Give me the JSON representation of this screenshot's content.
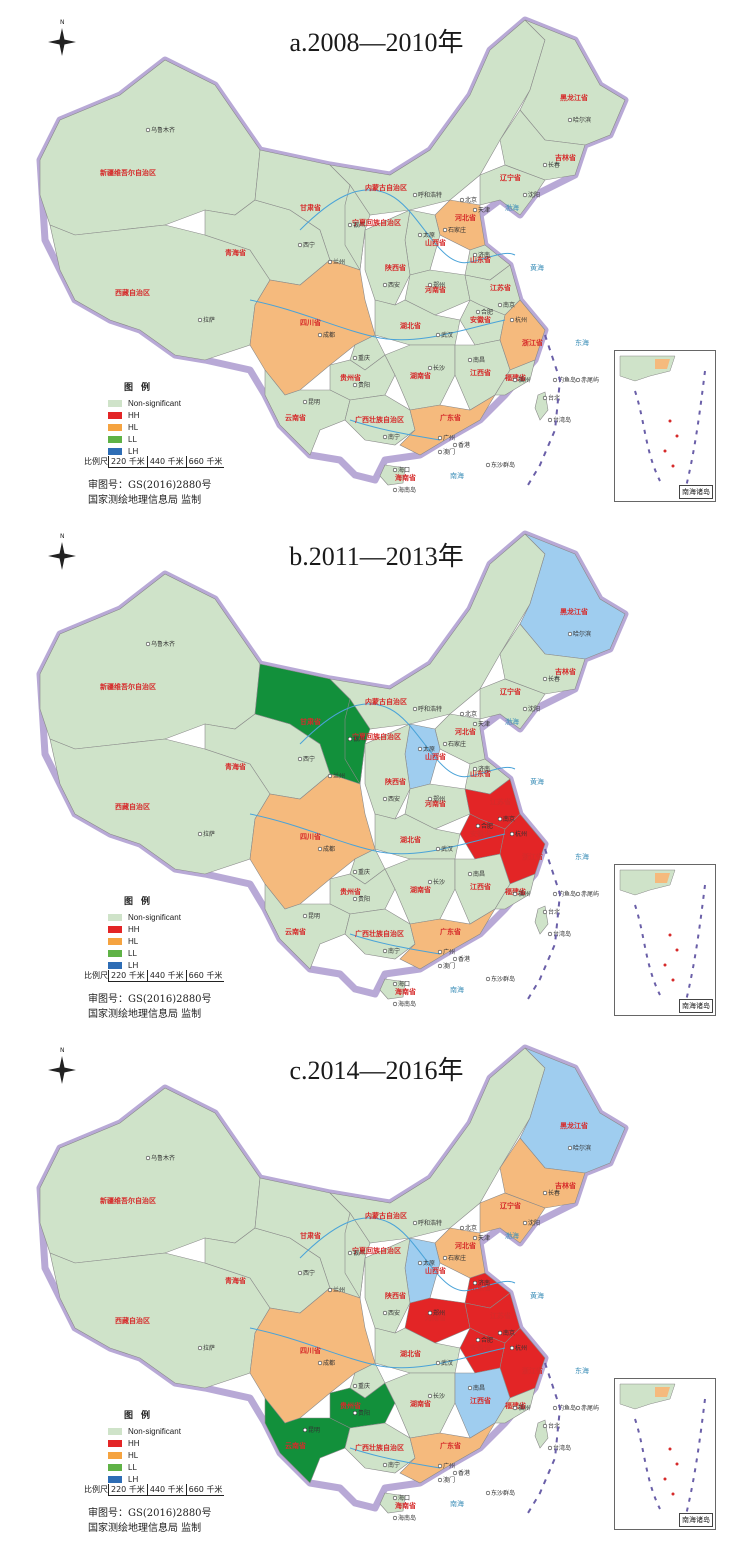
{
  "colors": {
    "non_significant": "#cfe3c9",
    "hh": "#e32526",
    "hl": "#f5ba7d",
    "ll": "#12903b",
    "lh": "#9fcdef",
    "border_glow": "#b8a9d6",
    "river": "#4aa3d8",
    "sea": "#ffffff"
  },
  "panels": [
    {
      "title": "a.2008—2010年",
      "legend": {
        "title": "图例",
        "items": [
          {
            "label": "Non-significant",
            "color": "#cfe3c9"
          },
          {
            "label": "HH",
            "color": "#e32526"
          },
          {
            "label": "HL",
            "color": "#f5a340"
          },
          {
            "label": "LL",
            "color": "#5fb246"
          },
          {
            "label": "LH",
            "color": "#2e6db5"
          }
        ]
      },
      "scale": {
        "label": "比例尺",
        "ticks": [
          "220 千米",
          "440 千米",
          "660 千米"
        ]
      },
      "approval": [
        "审图号：GS(2016)2880号",
        "国家测绘地理信息局 监制"
      ],
      "inset_label": "南海诸岛"
    },
    {
      "title": "b.2011—2013年",
      "legend": {
        "title": "图例",
        "items": [
          {
            "label": "Non-significant",
            "color": "#cfe3c9"
          },
          {
            "label": "HH",
            "color": "#e32526"
          },
          {
            "label": "HL",
            "color": "#f5a340"
          },
          {
            "label": "LL",
            "color": "#5fb246"
          },
          {
            "label": "LH",
            "color": "#2e6db5"
          }
        ]
      },
      "scale": {
        "label": "比例尺",
        "ticks": [
          "220 千米",
          "440 千米",
          "660 千米"
        ]
      },
      "approval": [
        "审图号：GS(2016)2880号",
        "国家测绘地理信息局 监制"
      ],
      "inset_label": "南海诸岛"
    },
    {
      "title": "c.2014—2016年",
      "legend": {
        "title": "图例",
        "items": [
          {
            "label": "Non-significant",
            "color": "#cfe3c9"
          },
          {
            "label": "HH",
            "color": "#e32526"
          },
          {
            "label": "HL",
            "color": "#f5a340"
          },
          {
            "label": "LL",
            "color": "#5fb246"
          },
          {
            "label": "LH",
            "color": "#2e6db5"
          }
        ]
      },
      "scale": {
        "label": "比例尺",
        "ticks": [
          "220 千米",
          "440 千米",
          "660 千米"
        ]
      },
      "approval": [
        "审图号：GS(2016)2880号",
        "国家测绘地理信息局 监制"
      ],
      "inset_label": "南海诸岛"
    }
  ],
  "map_labels": {
    "xinjiang": "新疆维吾尔自治区",
    "tibet": "西藏自治区",
    "qinghai": "青海省",
    "gansu": "甘肃省",
    "neimenggu": "内蒙古自治区",
    "sichuan": "四川省",
    "yunnan": "云南省",
    "guizhou": "贵州省",
    "guangxi": "广西壮族自治区",
    "guangdong": "广东省",
    "hainan": "海南省",
    "hunan": "湖南省",
    "hubei": "湖北省",
    "henan": "河南省",
    "shandong": "山东省",
    "shanxi": "山西省",
    "heilongjiang": "黑龙江省",
    "jilin": "吉林省",
    "liaoning": "辽宁省",
    "zhejiang": "浙江省",
    "jiangxi": "江西省",
    "fujian": "福建省",
    "shaanxi": "陕西省",
    "anhui": "安徽省",
    "jiangsu": "江苏省",
    "ningxia": "宁夏回族自治区",
    "hebei": "河北省"
  },
  "city_labels": {
    "urumqi": "乌鲁木齐",
    "lhasa": "拉萨",
    "xining": "西宁",
    "lanzhou": "兰州",
    "chengdu": "成都",
    "chongqing": "重庆",
    "kunming": "昆明",
    "guiyang": "贵阳",
    "nanning": "南宁",
    "guangzhou": "广州",
    "haikou": "海口",
    "changsha": "长沙",
    "wuhan": "武汉",
    "nanchang": "南昌",
    "fuzhou": "福州",
    "hangzhou": "杭州",
    "nanjing": "南京",
    "hefei": "合肥",
    "zhengzhou": "郑州",
    "xian": "西安",
    "taiyuan": "太原",
    "shijiazhuang": "石家庄",
    "jinan": "济南",
    "beijing": "北京",
    "tianjin": "天津",
    "shenyang": "沈阳",
    "changchun": "长春",
    "harbin": "哈尔滨",
    "huhehaote": "呼和浩特",
    "yinchuan": "银川",
    "taipei": "台北",
    "hongkong": "香港",
    "macao": "澳门",
    "taiwan": "台湾岛",
    "hainan_island": "海南岛",
    "diaoyu": "钓鱼岛",
    "chiwei": "赤尾屿",
    "dongsha": "东沙群岛"
  },
  "sea_labels": {
    "bohai": "渤海",
    "huanghai": "黄海",
    "donghai": "东海",
    "nanhai": "南海"
  }
}
